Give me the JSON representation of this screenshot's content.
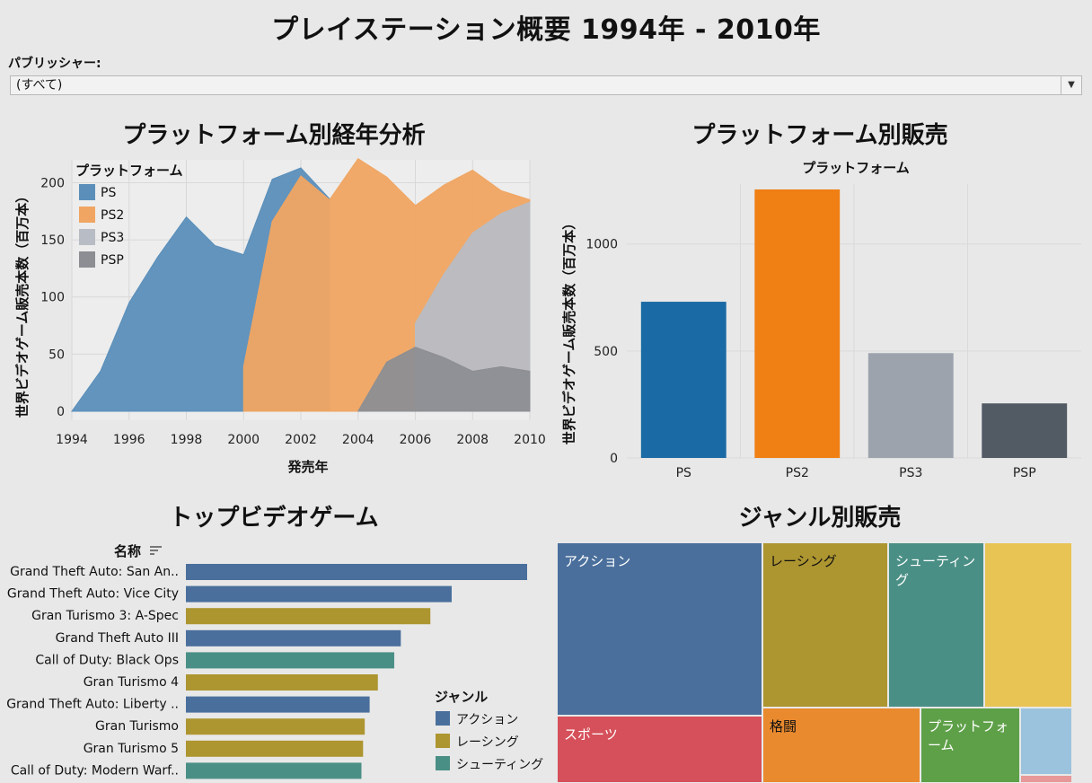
{
  "dashboard": {
    "title": "プレイステーション概要 1994年 - 2010年"
  },
  "filter": {
    "label": "パブリッシャー:",
    "value": "(すべて)",
    "arrow_icon": "caret-down-icon"
  },
  "titles": {
    "area": "プラットフォーム別経年分析",
    "bar": "プラットフォーム別販売",
    "top_games": "トップビデオゲーム",
    "treemap": "ジャンル別販売"
  },
  "colors": {
    "PS": "#5b8fba",
    "PS2": "#f0a562",
    "PS3": "#b8bcc4",
    "PSP": "#8c8e93",
    "PS_bar": "#1a6aa5",
    "PS2_bar": "#f07f14",
    "PS3_bar": "#9da3ad",
    "PSP_bar": "#525a64",
    "action": "#4a6f9c",
    "racing": "#ad9530",
    "shooting": "#4a8f85",
    "other_yellow": "#e8c455",
    "sports": "#d5505a",
    "fighting": "#ea8a2e",
    "platform": "#5ea048",
    "light_blue": "#9cc3de",
    "pink": "#e89898"
  },
  "chart_data": [
    {
      "type": "area",
      "title": "プラットフォーム別経年分析",
      "xlabel": "発売年",
      "ylabel": "世界ビデオゲーム販売本数（百万本）",
      "xlim": [
        1994,
        2010
      ],
      "ylim": [
        0,
        220
      ],
      "xticks": [
        "1994",
        "1996",
        "1998",
        "2000",
        "2002",
        "2004",
        "2006",
        "2008",
        "2010"
      ],
      "yticks": [
        "0",
        "50",
        "100",
        "150",
        "200"
      ],
      "legend_title": "プラットフォーム",
      "legend_position": "top-left",
      "grid": true,
      "series": [
        {
          "name": "PS",
          "points": [
            [
              1994,
              0
            ],
            [
              1995,
              35
            ],
            [
              1996,
              95
            ],
            [
              1997,
              135
            ],
            [
              1998,
              170
            ],
            [
              1999,
              145
            ],
            [
              2000,
              137
            ],
            [
              2001,
              203
            ],
            [
              2002,
              213
            ],
            [
              2003,
              186
            ]
          ]
        },
        {
          "name": "PS2",
          "points": [
            [
              2000,
              39
            ],
            [
              2001,
              166
            ],
            [
              2002,
              206
            ],
            [
              2003,
              185
            ],
            [
              2004,
              221
            ],
            [
              2005,
              205
            ],
            [
              2006,
              180
            ],
            [
              2007,
              198
            ],
            [
              2008,
              211
            ],
            [
              2009,
              193
            ],
            [
              2010,
              185
            ]
          ]
        },
        {
          "name": "PS3",
          "points": [
            [
              2006,
              77
            ],
            [
              2007,
              120
            ],
            [
              2008,
              156
            ],
            [
              2009,
              173
            ],
            [
              2010,
              183
            ]
          ]
        },
        {
          "name": "PSP",
          "points": [
            [
              2004,
              0
            ],
            [
              2005,
              43
            ],
            [
              2006,
              56
            ],
            [
              2007,
              47
            ],
            [
              2008,
              35
            ],
            [
              2009,
              39
            ],
            [
              2010,
              35
            ]
          ]
        }
      ]
    },
    {
      "type": "bar",
      "title": "プラットフォーム別販売",
      "header": "プラットフォーム",
      "ylabel": "世界ビデオゲーム販売本数（百万本）",
      "ylim": [
        0,
        1280
      ],
      "yticks": [
        "0",
        "500",
        "1000"
      ],
      "categories": [
        "PS",
        "PS2",
        "PS3",
        "PSP"
      ],
      "values": [
        730,
        1255,
        490,
        255
      ]
    },
    {
      "type": "bar",
      "orientation": "horizontal",
      "title": "トップビデオゲーム",
      "row_header": "名称",
      "sort_icon": "sort-descending-icon",
      "legend_title": "ジャンル",
      "legend": [
        "アクション",
        "レーシング",
        "シューティング"
      ],
      "rows": [
        {
          "name": "Grand Theft Auto: San An..",
          "value": 20.8,
          "genre": "アクション"
        },
        {
          "name": "Grand Theft Auto: Vice City",
          "value": 16.2,
          "genre": "アクション"
        },
        {
          "name": "Gran Turismo 3: A-Spec",
          "value": 14.9,
          "genre": "レーシング"
        },
        {
          "name": "Grand Theft Auto III",
          "value": 13.1,
          "genre": "アクション"
        },
        {
          "name": "Call of Duty: Black Ops",
          "value": 12.7,
          "genre": "シューティング"
        },
        {
          "name": "Gran Turismo 4",
          "value": 11.7,
          "genre": "レーシング"
        },
        {
          "name": "Grand Theft Auto: Liberty ..",
          "value": 11.2,
          "genre": "アクション"
        },
        {
          "name": "Gran Turismo",
          "value": 10.9,
          "genre": "レーシング"
        },
        {
          "name": "Gran Turismo 5",
          "value": 10.8,
          "genre": "レーシング"
        },
        {
          "name": "Call of Duty: Modern Warf..",
          "value": 10.7,
          "genre": "シューティング"
        }
      ]
    },
    {
      "type": "treemap",
      "title": "ジャンル別販売",
      "cells": [
        {
          "label": "アクション",
          "colorKey": "action",
          "textColor": "#ffffff"
        },
        {
          "label": "レーシング",
          "colorKey": "racing",
          "textColor": "#111111"
        },
        {
          "label": "シューティング",
          "colorKey": "shooting",
          "textColor": "#ffffff"
        },
        {
          "label": "",
          "colorKey": "other_yellow",
          "textColor": "#111111"
        },
        {
          "label": "スポーツ",
          "colorKey": "sports",
          "textColor": "#ffffff"
        },
        {
          "label": "格闘",
          "colorKey": "fighting",
          "textColor": "#111111"
        },
        {
          "label": "プラットフォーム",
          "colorKey": "platform",
          "textColor": "#ffffff"
        },
        {
          "label": "",
          "colorKey": "light_blue",
          "textColor": "#111111"
        },
        {
          "label": "",
          "colorKey": "pink",
          "textColor": "#111111"
        }
      ]
    }
  ]
}
